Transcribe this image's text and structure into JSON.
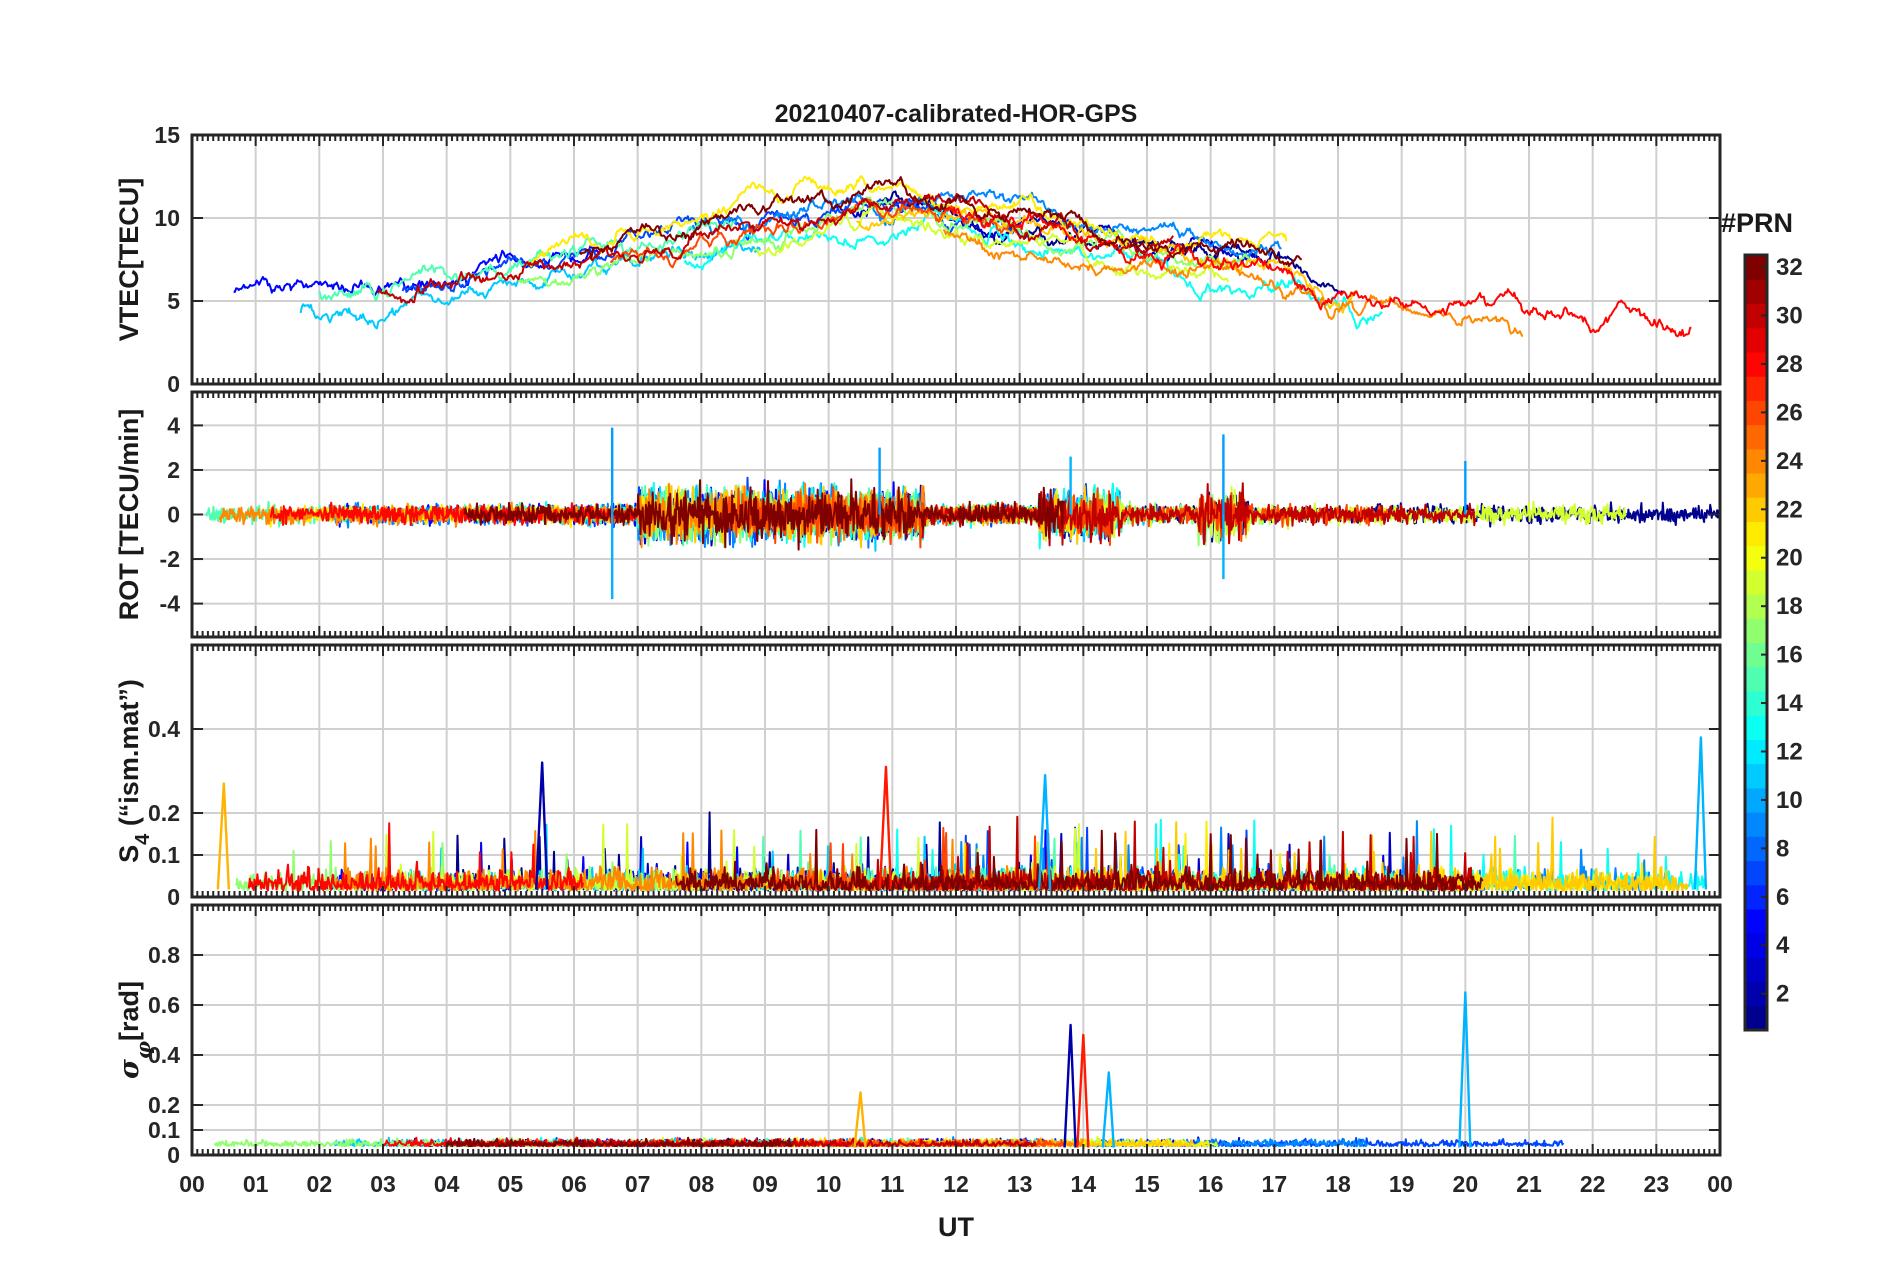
{
  "chart_data": {
    "type": "line",
    "title": "20210407-calibrated-HOR-GPS",
    "xlabel": "UT",
    "x_ticks": [
      "00",
      "01",
      "02",
      "03",
      "04",
      "05",
      "06",
      "07",
      "08",
      "09",
      "10",
      "11",
      "12",
      "13",
      "14",
      "15",
      "16",
      "17",
      "18",
      "19",
      "20",
      "21",
      "22",
      "23",
      "00"
    ],
    "xlim": [
      0,
      24
    ],
    "grid": true,
    "colorbar": {
      "title": "#PRN",
      "range": [
        1,
        32
      ],
      "ticks": [
        "2",
        "4",
        "6",
        "8",
        "10",
        "12",
        "14",
        "16",
        "18",
        "20",
        "22",
        "24",
        "26",
        "28",
        "30",
        "32"
      ],
      "colors": [
        "#00008f",
        "#0000ff",
        "#0080ff",
        "#00ffff",
        "#80ff80",
        "#ffff00",
        "#ff8000",
        "#ff0000",
        "#800000"
      ]
    },
    "panels": [
      {
        "ylabel": "VTEC[TECU]",
        "ylim": [
          0,
          15
        ],
        "ytick_values": [
          0,
          5,
          10,
          15
        ],
        "ytick_labels": [
          "0",
          "5",
          "10",
          "15"
        ],
        "series_summary": "VTEC ~4-6 TECU at 00-05 UT, rising to peak ~11-13 TECU near 10-12 UT, declining to ~2-5 TECU by 22-24 UT",
        "envelope": {
          "x": [
            0,
            2,
            4,
            6,
            8,
            10,
            11,
            12,
            14,
            16,
            17,
            18,
            20,
            22,
            24
          ],
          "y": [
            5,
            4.8,
            5.5,
            6.8,
            8.5,
            10,
            10.5,
            10,
            8.5,
            7.5,
            7.5,
            5.5,
            5,
            3.5,
            4
          ]
        }
      },
      {
        "ylabel": "ROT [TECU/min]",
        "ylim": [
          -5.5,
          5.5
        ],
        "ytick_values": [
          -4,
          -2,
          0,
          2,
          4
        ],
        "ytick_labels": [
          "-4",
          "-2",
          "0",
          "2",
          "4"
        ],
        "spikes": [
          {
            "x": 6.6,
            "y": 3.9
          },
          {
            "x": 6.6,
            "y": -3.8
          },
          {
            "x": 16.2,
            "y": 3.6
          },
          {
            "x": 16.2,
            "y": -2.9
          },
          {
            "x": 10.8,
            "y": 3.0
          },
          {
            "x": 13.8,
            "y": 2.6
          },
          {
            "x": 20.0,
            "y": 2.4
          }
        ]
      },
      {
        "ylabel": "S4 (\"ism.mat\")",
        "ylim": [
          0,
          0.6
        ],
        "ytick_values": [
          0,
          0.1,
          0.2,
          0.4
        ],
        "ytick_labels": [
          "0",
          "0.1",
          "0.2",
          "0.4"
        ],
        "peaks": [
          {
            "x": 23.7,
            "y": 0.38
          },
          {
            "x": 5.5,
            "y": 0.32
          },
          {
            "x": 10.9,
            "y": 0.31
          },
          {
            "x": 13.4,
            "y": 0.29
          },
          {
            "x": 0.5,
            "y": 0.27
          }
        ]
      },
      {
        "ylabel": "σφ [rad]",
        "ylim": [
          0,
          1.0
        ],
        "ytick_values": [
          0,
          0.1,
          0.2,
          0.4,
          0.6,
          0.8
        ],
        "ytick_labels": [
          "0",
          "0.1",
          "0.2",
          "0.4",
          "0.6",
          "0.8"
        ],
        "peaks": [
          {
            "x": 20.0,
            "y": 0.65
          },
          {
            "x": 13.8,
            "y": 0.52
          },
          {
            "x": 14.0,
            "y": 0.48
          },
          {
            "x": 14.4,
            "y": 0.33
          },
          {
            "x": 10.5,
            "y": 0.25
          }
        ]
      }
    ]
  }
}
